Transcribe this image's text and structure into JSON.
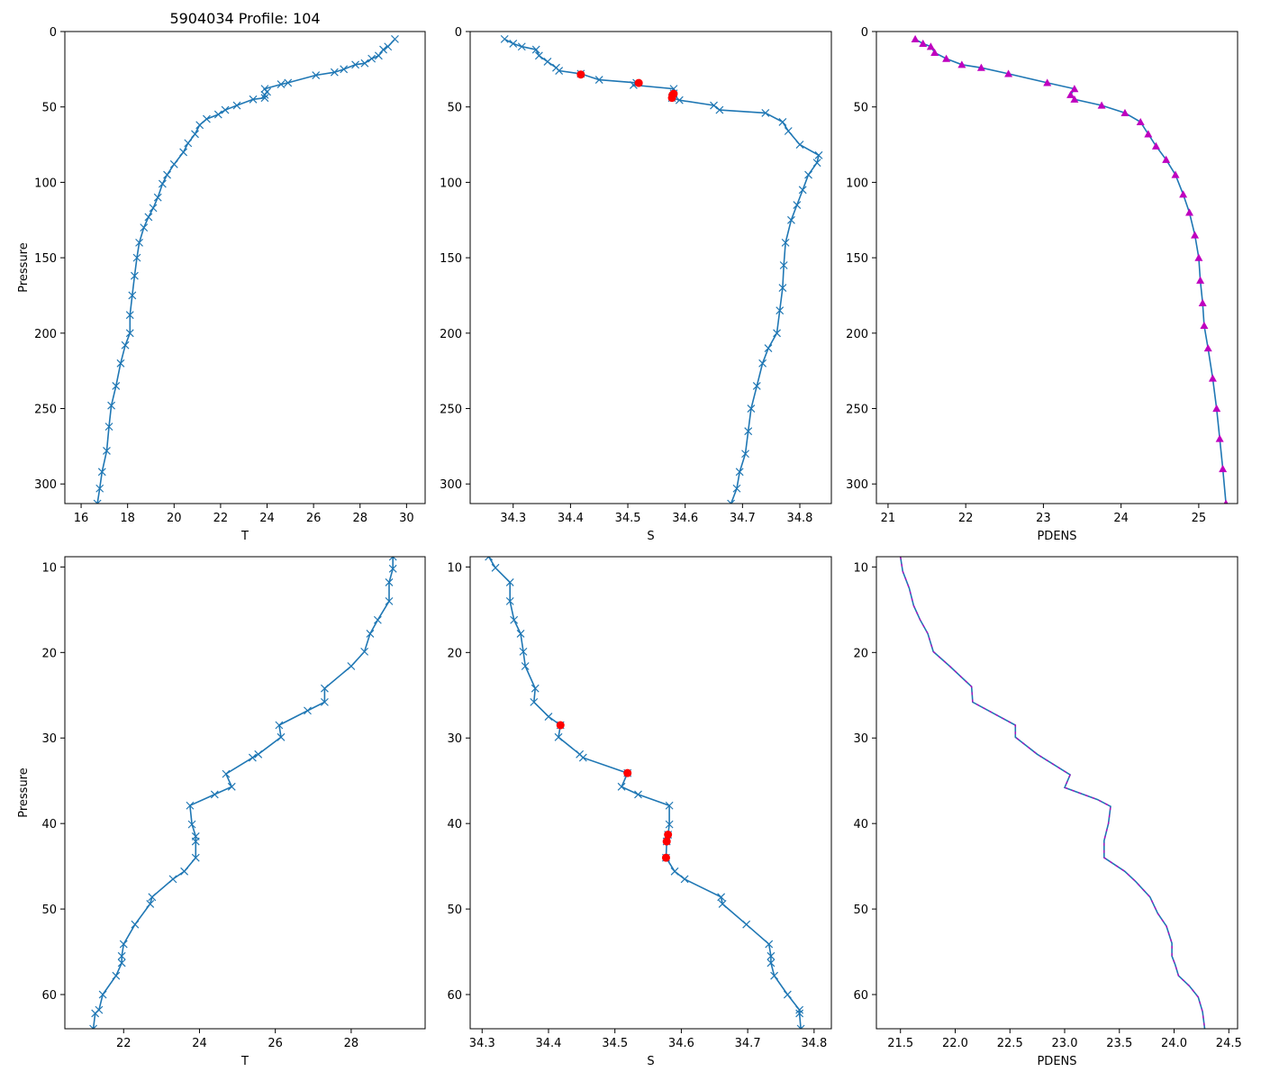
{
  "title": "5904034 Profile: 104",
  "colors": {
    "line": "#1f77b4",
    "magenta": "#bf00bf",
    "red": "#ff0000",
    "axis": "#000000"
  },
  "chart_data": [
    {
      "id": "top-temperature",
      "type": "line",
      "xlabel": "T",
      "ylabel": "Pressure",
      "xlim": [
        15.3,
        30.8
      ],
      "ylim": [
        313,
        0
      ],
      "xticks": [
        16,
        18,
        20,
        22,
        24,
        26,
        28,
        30
      ],
      "yticks": [
        0,
        50,
        100,
        150,
        200,
        250,
        300
      ],
      "marker": "x",
      "series": [
        {
          "name": "T",
          "points": [
            [
              29.5,
              5
            ],
            [
              29.2,
              10
            ],
            [
              29.0,
              12
            ],
            [
              28.8,
              16
            ],
            [
              28.5,
              18
            ],
            [
              28.2,
              21
            ],
            [
              27.8,
              22
            ],
            [
              27.3,
              25
            ],
            [
              26.9,
              27
            ],
            [
              26.1,
              29
            ],
            [
              24.9,
              34
            ],
            [
              24.6,
              35
            ],
            [
              23.9,
              38
            ],
            [
              24.0,
              40
            ],
            [
              23.9,
              42
            ],
            [
              23.9,
              44
            ],
            [
              23.4,
              45
            ],
            [
              22.7,
              49
            ],
            [
              22.2,
              52
            ],
            [
              21.9,
              55
            ],
            [
              21.4,
              58
            ],
            [
              21.1,
              62
            ],
            [
              20.9,
              68
            ],
            [
              20.6,
              74
            ],
            [
              20.4,
              80
            ],
            [
              20.0,
              88
            ],
            [
              19.7,
              95
            ],
            [
              19.5,
              101
            ],
            [
              19.3,
              110
            ],
            [
              19.1,
              117
            ],
            [
              18.9,
              123
            ],
            [
              18.7,
              130
            ],
            [
              18.5,
              140
            ],
            [
              18.4,
              150
            ],
            [
              18.3,
              162
            ],
            [
              18.2,
              175
            ],
            [
              18.1,
              188
            ],
            [
              18.1,
              200
            ],
            [
              17.9,
              208
            ],
            [
              17.7,
              220
            ],
            [
              17.5,
              235
            ],
            [
              17.3,
              248
            ],
            [
              17.2,
              262
            ],
            [
              17.1,
              278
            ],
            [
              16.9,
              292
            ],
            [
              16.8,
              303
            ],
            [
              16.7,
              313
            ]
          ]
        }
      ]
    },
    {
      "id": "top-salinity",
      "type": "line",
      "xlabel": "S",
      "ylabel": "",
      "xlim": [
        34.225,
        34.855
      ],
      "ylim": [
        313,
        0
      ],
      "xticks": [
        34.3,
        34.4,
        34.5,
        34.6,
        34.7,
        34.8
      ],
      "yticks": [
        0,
        50,
        100,
        150,
        200,
        250,
        300
      ],
      "marker": "x",
      "series": [
        {
          "name": "S",
          "points": [
            [
              34.285,
              5
            ],
            [
              34.3,
              8
            ],
            [
              34.315,
              10
            ],
            [
              34.34,
              12
            ],
            [
              34.345,
              16
            ],
            [
              34.36,
              20
            ],
            [
              34.375,
              24
            ],
            [
              34.38,
              26
            ],
            [
              34.418,
              28
            ],
            [
              34.45,
              32
            ],
            [
              34.515,
              34
            ],
            [
              34.51,
              35.5
            ],
            [
              34.58,
              38
            ],
            [
              34.58,
              41
            ],
            [
              34.577,
              44
            ],
            [
              34.59,
              45.5
            ],
            [
              34.65,
              49
            ],
            [
              34.66,
              52
            ],
            [
              34.74,
              54
            ],
            [
              34.77,
              60
            ],
            [
              34.78,
              66
            ],
            [
              34.8,
              75
            ],
            [
              34.833,
              82
            ],
            [
              34.83,
              87
            ],
            [
              34.815,
              95
            ],
            [
              34.805,
              105
            ],
            [
              34.795,
              115
            ],
            [
              34.785,
              125
            ],
            [
              34.775,
              140
            ],
            [
              34.772,
              155
            ],
            [
              34.77,
              170
            ],
            [
              34.765,
              185
            ],
            [
              34.76,
              200
            ],
            [
              34.745,
              210
            ],
            [
              34.735,
              220
            ],
            [
              34.725,
              235
            ],
            [
              34.715,
              250
            ],
            [
              34.71,
              265
            ],
            [
              34.705,
              280
            ],
            [
              34.695,
              292
            ],
            [
              34.69,
              303
            ],
            [
              34.68,
              313
            ]
          ]
        }
      ],
      "highlights": [
        [
          34.418,
          28.5
        ],
        [
          34.519,
          34.1
        ],
        [
          34.58,
          41.3
        ],
        [
          34.578,
          42.1
        ],
        [
          34.577,
          44.0
        ]
      ]
    },
    {
      "id": "top-density",
      "type": "line",
      "xlabel": "PDENS",
      "ylabel": "",
      "xlim": [
        20.85,
        25.5
      ],
      "ylim": [
        313,
        0
      ],
      "xticks": [
        21,
        22,
        23,
        24,
        25
      ],
      "yticks": [
        0,
        50,
        100,
        150,
        200,
        250,
        300
      ],
      "marker": "triangle",
      "series": [
        {
          "name": "PDENS",
          "points": [
            [
              21.35,
              5
            ],
            [
              21.45,
              8
            ],
            [
              21.55,
              10
            ],
            [
              21.6,
              14
            ],
            [
              21.75,
              18
            ],
            [
              21.95,
              22
            ],
            [
              22.2,
              24
            ],
            [
              22.55,
              28
            ],
            [
              23.05,
              34
            ],
            [
              23.4,
              38
            ],
            [
              23.35,
              42
            ],
            [
              23.4,
              45
            ],
            [
              23.75,
              49
            ],
            [
              24.05,
              54
            ],
            [
              24.25,
              60
            ],
            [
              24.35,
              68
            ],
            [
              24.45,
              76
            ],
            [
              24.58,
              85
            ],
            [
              24.7,
              95
            ],
            [
              24.8,
              108
            ],
            [
              24.88,
              120
            ],
            [
              24.95,
              135
            ],
            [
              25.0,
              150
            ],
            [
              25.02,
              165
            ],
            [
              25.05,
              180
            ],
            [
              25.07,
              195
            ],
            [
              25.12,
              210
            ],
            [
              25.18,
              230
            ],
            [
              25.23,
              250
            ],
            [
              25.27,
              270
            ],
            [
              25.31,
              290
            ],
            [
              25.35,
              313
            ]
          ]
        }
      ]
    },
    {
      "id": "bottom-temperature",
      "type": "line",
      "xlabel": "T",
      "ylabel": "Pressure",
      "xlim": [
        20.45,
        29.95
      ],
      "ylim": [
        64,
        8.8
      ],
      "xticks": [
        22,
        24,
        26,
        28
      ],
      "yticks": [
        10,
        20,
        30,
        40,
        50,
        60
      ],
      "marker": "x",
      "series": [
        {
          "name": "T",
          "points": [
            [
              29.1,
              8.8
            ],
            [
              29.1,
              10.2
            ],
            [
              29.0,
              11.8
            ],
            [
              29.0,
              14.0
            ],
            [
              28.7,
              16.2
            ],
            [
              28.5,
              17.8
            ],
            [
              28.35,
              19.9
            ],
            [
              28.0,
              21.6
            ],
            [
              27.3,
              24.2
            ],
            [
              27.3,
              25.8
            ],
            [
              26.85,
              26.8
            ],
            [
              26.1,
              28.5
            ],
            [
              26.15,
              29.9
            ],
            [
              25.55,
              31.9
            ],
            [
              25.4,
              32.3
            ],
            [
              24.7,
              34.2
            ],
            [
              24.85,
              35.7
            ],
            [
              24.4,
              36.6
            ],
            [
              23.75,
              37.9
            ],
            [
              23.8,
              40.1
            ],
            [
              23.9,
              41.5
            ],
            [
              23.9,
              42.1
            ],
            [
              23.9,
              44.0
            ],
            [
              23.6,
              45.6
            ],
            [
              23.3,
              46.5
            ],
            [
              22.75,
              48.6
            ],
            [
              22.7,
              49.4
            ],
            [
              22.3,
              51.8
            ],
            [
              22.0,
              54.1
            ],
            [
              21.95,
              55.5
            ],
            [
              21.95,
              56.3
            ],
            [
              21.8,
              57.8
            ],
            [
              21.45,
              60.0
            ],
            [
              21.35,
              61.8
            ],
            [
              21.25,
              62.2
            ],
            [
              21.2,
              64.0
            ]
          ]
        }
      ]
    },
    {
      "id": "bottom-salinity",
      "type": "line",
      "xlabel": "S",
      "ylabel": "",
      "xlim": [
        34.282,
        34.826
      ],
      "ylim": [
        64,
        8.8
      ],
      "xticks": [
        34.3,
        34.4,
        34.5,
        34.6,
        34.7,
        34.8
      ],
      "yticks": [
        10,
        20,
        30,
        40,
        50,
        60
      ],
      "marker": "x",
      "series": [
        {
          "name": "S",
          "points": [
            [
              34.31,
              8.8
            ],
            [
              34.32,
              10.1
            ],
            [
              34.342,
              11.8
            ],
            [
              34.342,
              14.0
            ],
            [
              34.348,
              16.2
            ],
            [
              34.358,
              17.8
            ],
            [
              34.362,
              19.9
            ],
            [
              34.365,
              21.6
            ],
            [
              34.38,
              24.2
            ],
            [
              34.378,
              25.8
            ],
            [
              34.4,
              27.5
            ],
            [
              34.418,
              28.5
            ],
            [
              34.415,
              29.9
            ],
            [
              34.447,
              31.9
            ],
            [
              34.452,
              32.3
            ],
            [
              34.519,
              34.1
            ],
            [
              34.51,
              35.7
            ],
            [
              34.535,
              36.6
            ],
            [
              34.582,
              37.9
            ],
            [
              34.582,
              40.1
            ],
            [
              34.58,
              41.3
            ],
            [
              34.578,
              42.1
            ],
            [
              34.577,
              44.0
            ],
            [
              34.59,
              45.6
            ],
            [
              34.605,
              46.5
            ],
            [
              34.66,
              48.6
            ],
            [
              34.662,
              49.4
            ],
            [
              34.698,
              51.8
            ],
            [
              34.732,
              54.1
            ],
            [
              34.735,
              55.5
            ],
            [
              34.735,
              56.3
            ],
            [
              34.74,
              57.8
            ],
            [
              34.76,
              60.0
            ],
            [
              34.778,
              61.8
            ],
            [
              34.778,
              62.2
            ],
            [
              34.78,
              64.0
            ]
          ]
        }
      ],
      "highlights": [
        [
          34.418,
          28.5
        ],
        [
          34.519,
          34.1
        ],
        [
          34.58,
          41.3
        ],
        [
          34.578,
          42.1
        ],
        [
          34.577,
          44.0
        ]
      ]
    },
    {
      "id": "bottom-density",
      "type": "line",
      "xlabel": "PDENS",
      "ylabel": "",
      "xlim": [
        21.28,
        24.58
      ],
      "ylim": [
        64,
        8.8
      ],
      "xticks": [
        21.5,
        22.0,
        22.5,
        23.0,
        23.5,
        24.0,
        24.5
      ],
      "ytick_labels_fmt": "",
      "yticks": [
        10,
        20,
        30,
        40,
        50,
        60
      ],
      "marker": "none",
      "series": [
        {
          "name": "PDENS",
          "points": [
            [
              21.5,
              8.8
            ],
            [
              21.52,
              10.5
            ],
            [
              21.58,
              12.5
            ],
            [
              21.62,
              14.5
            ],
            [
              21.68,
              16.2
            ],
            [
              21.75,
              17.8
            ],
            [
              21.8,
              19.9
            ],
            [
              21.95,
              21.6
            ],
            [
              22.15,
              24.0
            ],
            [
              22.16,
              25.8
            ],
            [
              22.55,
              28.5
            ],
            [
              22.55,
              29.9
            ],
            [
              22.75,
              31.9
            ],
            [
              23.05,
              34.3
            ],
            [
              23.0,
              35.8
            ],
            [
              23.3,
              37.2
            ],
            [
              23.42,
              38.0
            ],
            [
              23.4,
              40.0
            ],
            [
              23.36,
              42.0
            ],
            [
              23.36,
              44.0
            ],
            [
              23.55,
              45.6
            ],
            [
              23.65,
              46.8
            ],
            [
              23.78,
              48.6
            ],
            [
              23.85,
              50.5
            ],
            [
              23.93,
              52.0
            ],
            [
              23.98,
              54.0
            ],
            [
              23.98,
              55.5
            ],
            [
              24.01,
              56.5
            ],
            [
              24.04,
              57.8
            ],
            [
              24.14,
              59.0
            ],
            [
              24.22,
              60.3
            ],
            [
              24.26,
              62.0
            ],
            [
              24.28,
              64.0
            ]
          ]
        }
      ]
    }
  ]
}
